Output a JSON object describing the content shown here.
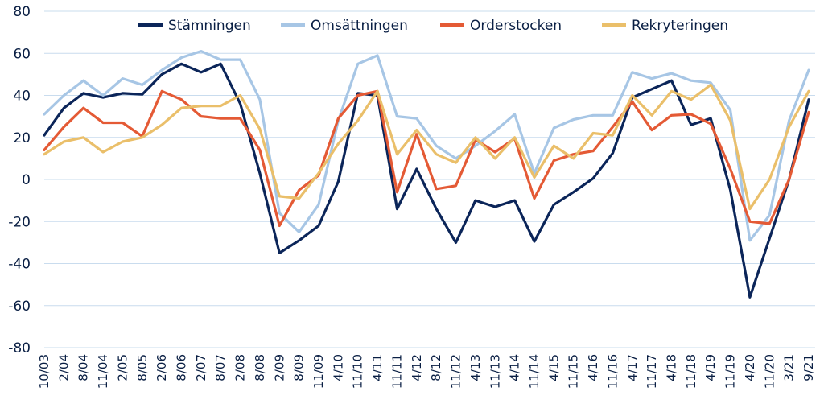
{
  "chart_data": {
    "type": "line",
    "title": "",
    "xlabel": "",
    "ylabel": "",
    "ylim": [
      -80,
      80
    ],
    "yticks": [
      -80,
      -60,
      -40,
      -20,
      0,
      20,
      40,
      60,
      80
    ],
    "grid": "horizontal",
    "legend_position": "top",
    "categories": [
      "10/03",
      "2/04",
      "8/04",
      "11/04",
      "2/05",
      "8/05",
      "2/06",
      "8/06",
      "2/07",
      "8/07",
      "2/08",
      "8/08",
      "2/09",
      "8/09",
      "11/09",
      "4/10",
      "11/10",
      "4/11",
      "11/11",
      "4/12",
      "8/12",
      "11/12",
      "4/13",
      "11/13",
      "4/14",
      "11/14",
      "4/15",
      "11/15",
      "4/16",
      "11/16",
      "4/17",
      "11/17",
      "4/18",
      "11/18",
      "4/19",
      "11/19",
      "4/20",
      "11/20",
      "3/21",
      "9/21"
    ],
    "series": [
      {
        "name": "Stämningen",
        "color": "#0b2559",
        "values": [
          21,
          34,
          41,
          39,
          41,
          40.5,
          50,
          55,
          51,
          55,
          36,
          3,
          -35,
          -29,
          -22,
          -1,
          41,
          40,
          -14,
          5,
          -14,
          -30,
          -10,
          -13,
          -10,
          -29.5,
          -12,
          -6,
          0.5,
          12.5,
          39,
          43,
          47,
          26,
          29,
          -5,
          -56,
          -28,
          0,
          38
        ]
      },
      {
        "name": "Omsättningen",
        "color": "#a7c6e5",
        "values": [
          31,
          40,
          47,
          40,
          48,
          45,
          52,
          58,
          61,
          57,
          57,
          38,
          -16,
          -25,
          -12,
          28,
          55,
          59,
          30,
          29,
          16,
          10,
          16,
          23,
          31,
          3,
          24.5,
          28.5,
          30.5,
          30.5,
          51,
          48,
          50.5,
          47,
          46,
          33,
          -29,
          -17,
          28,
          52
        ]
      },
      {
        "name": "Orderstocken",
        "color": "#e45a35",
        "values": [
          14,
          25,
          34,
          27,
          27,
          20.5,
          42,
          38,
          30,
          29,
          29,
          14,
          -22,
          -5,
          2,
          29,
          40,
          42,
          -6,
          21.5,
          -4.5,
          -3,
          19,
          13,
          19.5,
          -9,
          9,
          12,
          13.5,
          25,
          37,
          23.5,
          30.5,
          31,
          26.5,
          5,
          -20,
          -21,
          0,
          32
        ]
      },
      {
        "name": "Rekryteringen",
        "color": "#eabf6a",
        "values": [
          12,
          18,
          20,
          13,
          18,
          20,
          26,
          34,
          35,
          35,
          40,
          24,
          -8,
          -9,
          3,
          17,
          28,
          42,
          12,
          23.5,
          12,
          8,
          20,
          10,
          20,
          1,
          16,
          10,
          22,
          21,
          40,
          30.5,
          42,
          38,
          45,
          28,
          -14,
          0,
          25,
          42
        ]
      }
    ]
  }
}
